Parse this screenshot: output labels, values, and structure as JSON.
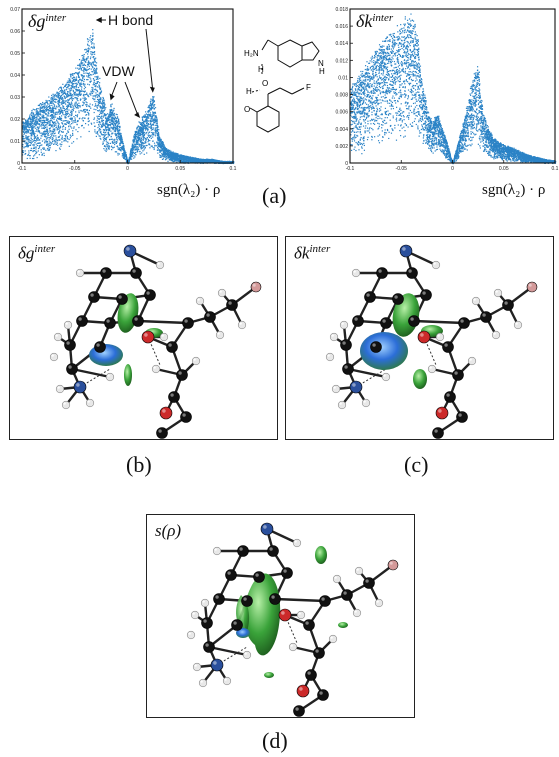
{
  "figure": {
    "panel_a": {
      "caption": "(a)",
      "left_plot": {
        "title_base": "δg",
        "title_sup": "inter",
        "annotation_hbond": "H bond",
        "annotation_vdw": "VDW"
      },
      "right_plot": {
        "title_base": "δk",
        "title_sup": "inter"
      },
      "x_axis_label": "sgn(λ₂) · ρ",
      "molecule_labels": [
        "H₂N",
        "H",
        "O",
        "H",
        "O",
        "F",
        "N",
        "H"
      ]
    },
    "panel_b": {
      "caption": "(b)",
      "title_base": "δg",
      "title_sup": "inter"
    },
    "panel_c": {
      "caption": "(c)",
      "title_base": "δk",
      "title_sup": "inter"
    },
    "panel_d": {
      "caption": "(d)",
      "title": "s(ρ)"
    }
  },
  "colors": {
    "scatter": "#2b83c6",
    "atom_carbon": "#111111",
    "atom_nitrogen": "#2a4f9c",
    "atom_oxygen": "#cc2a2a",
    "atom_hydrogen": "#e8e8e8",
    "atom_fluorine": "#d49a9a",
    "isosurface_green": "#3aa33a",
    "isosurface_blue": "#2c6ed8"
  },
  "chart_data": [
    {
      "type": "scatter",
      "title": "δg^inter",
      "xlabel": "sgn(λ₂) · ρ",
      "ylabel": "",
      "xlim": [
        -0.1,
        0.1
      ],
      "ylim": [
        0,
        0.07
      ],
      "x_ticks": [
        "-0.1",
        "-0.05",
        "0",
        "0.05",
        "0.1"
      ],
      "y_ticks": [
        "0",
        "0.01",
        "0.02",
        "0.03",
        "0.04",
        "0.05",
        "0.06",
        "0.07"
      ],
      "annotations": [
        "H bond",
        "VDW"
      ],
      "envelope": {
        "x": [
          -0.1,
          -0.09,
          -0.08,
          -0.07,
          -0.06,
          -0.05,
          -0.045,
          -0.04,
          -0.036,
          -0.034,
          -0.032,
          -0.03,
          -0.027,
          -0.025,
          -0.022,
          -0.02,
          -0.018,
          -0.016,
          -0.014,
          -0.012,
          -0.01,
          -0.008,
          -0.006,
          -0.004,
          -0.002,
          0.0,
          0.002,
          0.005,
          0.008,
          0.01,
          0.012,
          0.014,
          0.016,
          0.018,
          0.02,
          0.022,
          0.024,
          0.025,
          0.027,
          0.03,
          0.035,
          0.04,
          0.05,
          0.06,
          0.07,
          0.08,
          0.09,
          0.1
        ],
        "upper": [
          0.02,
          0.025,
          0.029,
          0.033,
          0.038,
          0.045,
          0.05,
          0.055,
          0.06,
          0.065,
          0.058,
          0.048,
          0.04,
          0.034,
          0.03,
          0.022,
          0.025,
          0.029,
          0.027,
          0.024,
          0.023,
          0.019,
          0.013,
          0.008,
          0.005,
          0.0,
          0.005,
          0.012,
          0.017,
          0.019,
          0.02,
          0.022,
          0.024,
          0.026,
          0.028,
          0.03,
          0.032,
          0.031,
          0.022,
          0.013,
          0.008,
          0.006,
          0.004,
          0.003,
          0.002,
          0.002,
          0.001,
          0.001
        ],
        "lower": [
          0.001,
          0.002,
          0.003,
          0.004,
          0.006,
          0.009,
          0.011,
          0.013,
          0.014,
          0.015,
          0.013,
          0.01,
          0.008,
          0.006,
          0.005,
          0.003,
          0.004,
          0.004,
          0.004,
          0.004,
          0.003,
          0.003,
          0.002,
          0.001,
          0.001,
          0.0,
          0.001,
          0.002,
          0.003,
          0.003,
          0.003,
          0.004,
          0.004,
          0.004,
          0.005,
          0.005,
          0.005,
          0.005,
          0.004,
          0.002,
          0.001,
          0.001,
          0.0,
          0.0,
          0.0,
          0.0,
          0.0,
          0.0
        ]
      }
    },
    {
      "type": "scatter",
      "title": "δk^inter",
      "xlabel": "sgn(λ₂) · ρ",
      "ylabel": "",
      "xlim": [
        -0.1,
        0.1
      ],
      "ylim": [
        0,
        0.018
      ],
      "x_ticks": [
        "-0.1",
        "-0.05",
        "0",
        "0.05",
        "0.1"
      ],
      "y_ticks": [
        "0",
        "0.002",
        "0.004",
        "0.006",
        "0.008",
        "0.01",
        "0.012",
        "0.014",
        "0.016",
        "0.018"
      ],
      "envelope": {
        "x": [
          -0.1,
          -0.09,
          -0.08,
          -0.07,
          -0.06,
          -0.05,
          -0.045,
          -0.04,
          -0.036,
          -0.034,
          -0.032,
          -0.03,
          -0.027,
          -0.025,
          -0.022,
          -0.02,
          -0.018,
          -0.016,
          -0.014,
          -0.012,
          -0.01,
          -0.008,
          -0.006,
          -0.004,
          -0.002,
          0.0,
          0.002,
          0.005,
          0.008,
          0.01,
          0.012,
          0.014,
          0.016,
          0.018,
          0.02,
          0.022,
          0.024,
          0.025,
          0.027,
          0.03,
          0.035,
          0.04,
          0.05,
          0.06,
          0.07,
          0.08,
          0.09,
          0.1
        ],
        "upper": [
          0.009,
          0.011,
          0.013,
          0.0145,
          0.0158,
          0.017,
          0.0175,
          0.018,
          0.0165,
          0.015,
          0.012,
          0.01,
          0.008,
          0.0065,
          0.0055,
          0.005,
          0.0055,
          0.0058,
          0.0057,
          0.005,
          0.0042,
          0.0035,
          0.0027,
          0.0018,
          0.0008,
          0.0,
          0.0012,
          0.0025,
          0.004,
          0.005,
          0.006,
          0.0072,
          0.0085,
          0.0095,
          0.0105,
          0.0112,
          0.0118,
          0.012,
          0.0085,
          0.006,
          0.0042,
          0.003,
          0.0022,
          0.0018,
          0.0012,
          0.0008,
          0.0005,
          0.0003
        ],
        "lower": [
          0.0008,
          0.001,
          0.0014,
          0.0018,
          0.0022,
          0.0028,
          0.003,
          0.0032,
          0.0031,
          0.003,
          0.0026,
          0.0022,
          0.0018,
          0.0014,
          0.0012,
          0.001,
          0.0011,
          0.0012,
          0.0011,
          0.001,
          0.0008,
          0.0006,
          0.0004,
          0.0003,
          0.0001,
          0.0,
          0.0002,
          0.0004,
          0.0007,
          0.0009,
          0.001,
          0.0012,
          0.0014,
          0.0016,
          0.0017,
          0.0018,
          0.0019,
          0.0019,
          0.0014,
          0.001,
          0.0007,
          0.0005,
          0.0003,
          0.0002,
          0.0001,
          0.0001,
          0.0,
          0.0
        ]
      }
    }
  ]
}
